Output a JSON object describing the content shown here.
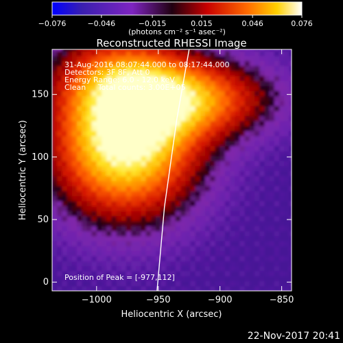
{
  "chart_data": {
    "type": "heatmap",
    "title": "Reconstructed RHESSI Image",
    "xlabel": "Heliocentric X (arcsec)",
    "ylabel": "Heliocentric Y (arcsec)",
    "xlim": [
      -1036,
      -842
    ],
    "ylim": [
      -7,
      186
    ],
    "x_ticks": [
      -1000,
      -950,
      -900,
      -850
    ],
    "x_tick_labels": [
      "−1000",
      "−950",
      "−900",
      "−850"
    ],
    "y_ticks": [
      0,
      50,
      100,
      150
    ],
    "y_tick_labels": [
      "0",
      "50",
      "100",
      "150"
    ],
    "colorbar": {
      "range": [
        -0.076,
        0.076
      ],
      "ticks": [
        -0.076,
        -0.046,
        -0.015,
        0.015,
        0.046,
        0.076
      ],
      "tick_labels": [
        "−0.076",
        "−0.046",
        "−0.015",
        "0.015",
        "0.046",
        "0.076"
      ],
      "units_label": "(photons cm⁻² s⁻¹ asec⁻²)",
      "colormap": "rhessi-fire",
      "colors": [
        "#0000ff",
        "#4a1aa8",
        "#7e24c0",
        "#000000",
        "#c80000",
        "#ff6600",
        "#ffcc00",
        "#ffffff"
      ]
    },
    "source_peak": {
      "x": -977,
      "y": 112
    },
    "limb_curve": [
      {
        "x": -925,
        "y": 186
      },
      {
        "x": -935,
        "y": 130
      },
      {
        "x": -945,
        "y": 60
      },
      {
        "x": -951,
        "y": -7
      }
    ],
    "annotations": [
      "31-Aug-2016 08:07:44.000 to 08:17:44.000",
      "Detectors: 3F 8F, Att 0",
      "Energy Range: 6.0 - 12.0 keV",
      "Clean     Total counts: 3.00E+05",
      "Position of Peak = [-977,112]"
    ],
    "footer_date": "22-Nov-2017 20:41"
  }
}
